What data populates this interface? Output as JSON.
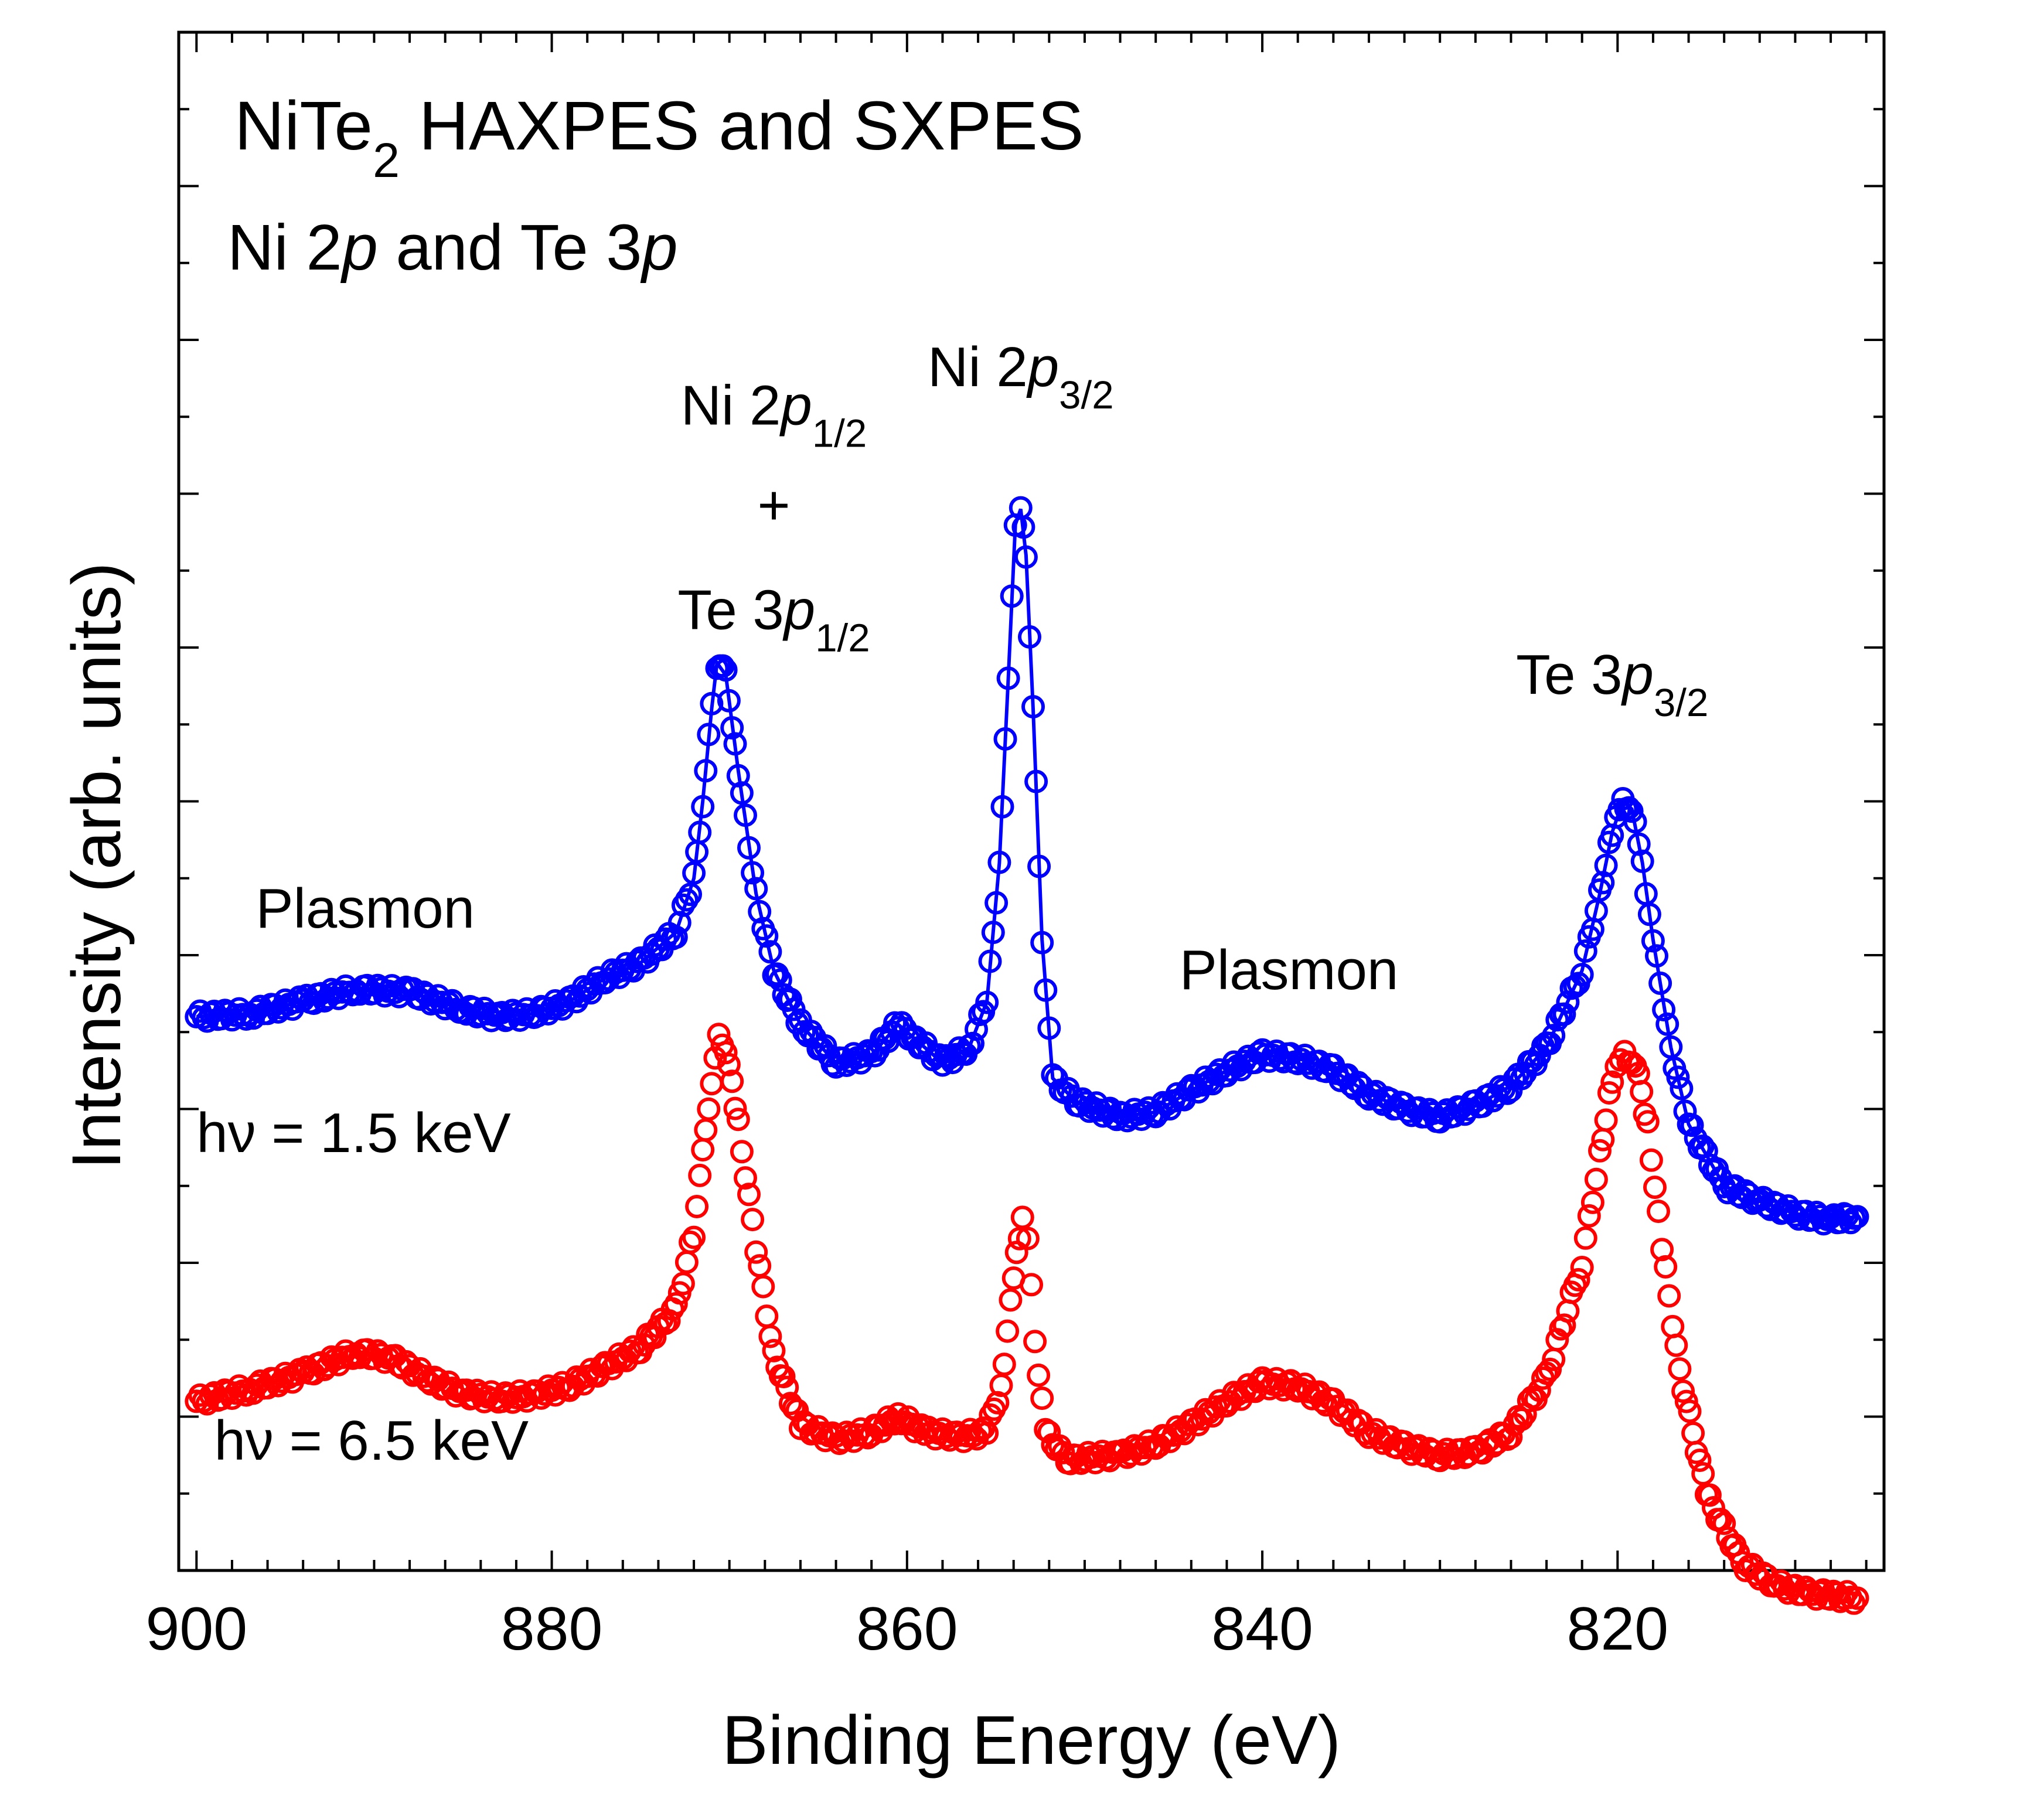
{
  "chart_data": {
    "type": "scatter",
    "title_parts": [
      {
        "text": "NiTe",
        "style": "normal"
      },
      {
        "text": "2",
        "style": "sub"
      },
      {
        "text": " HAXPES and SXPES",
        "style": "normal"
      }
    ],
    "subtitle_parts": [
      {
        "text": "Ni 2",
        "style": "normal"
      },
      {
        "text": "p",
        "style": "italic"
      },
      {
        "text": " and Te 3",
        "style": "normal"
      },
      {
        "text": "p",
        "style": "italic"
      }
    ],
    "xlabel": "Binding Energy (eV)",
    "ylabel": "Intensity (arb. units)",
    "xlim": [
      901,
      805
    ],
    "ylim": [
      0,
      10
    ],
    "x_reversed": true,
    "y_tick_labels": false,
    "xticks": [
      900,
      880,
      860,
      840,
      820
    ],
    "marker": "open-circle",
    "series": [
      {
        "label": "hν = 1.5 keV",
        "color": "#0000ff",
        "connected": true,
        "label_x": 900,
        "label_y": 2.72,
        "points": [
          [
            900,
            3.6
          ],
          [
            897,
            3.62
          ],
          [
            894,
            3.7
          ],
          [
            891,
            3.78
          ],
          [
            888,
            3.76
          ],
          [
            885,
            3.65
          ],
          [
            883,
            3.6
          ],
          [
            881,
            3.62
          ],
          [
            879,
            3.7
          ],
          [
            877,
            3.85
          ],
          [
            875,
            3.95
          ],
          [
            873,
            4.15
          ],
          [
            872,
            4.5
          ],
          [
            871.5,
            5.0
          ],
          [
            871,
            5.6
          ],
          [
            870.7,
            5.9
          ],
          [
            870.2,
            5.82
          ],
          [
            869.5,
            5.2
          ],
          [
            868.5,
            4.4
          ],
          [
            867.5,
            3.9
          ],
          [
            866,
            3.55
          ],
          [
            864,
            3.3
          ],
          [
            862,
            3.35
          ],
          [
            860.5,
            3.55
          ],
          [
            859.5,
            3.45
          ],
          [
            858,
            3.3
          ],
          [
            856.5,
            3.4
          ],
          [
            855.5,
            3.7
          ],
          [
            854.8,
            4.6
          ],
          [
            854.3,
            5.8
          ],
          [
            853.9,
            6.8
          ],
          [
            853.6,
            6.9
          ],
          [
            853.3,
            6.6
          ],
          [
            852.9,
            5.6
          ],
          [
            852.4,
            4.1
          ],
          [
            851.8,
            3.2
          ],
          [
            850.5,
            3.05
          ],
          [
            848,
            2.95
          ],
          [
            846,
            2.98
          ],
          [
            844,
            3.12
          ],
          [
            842,
            3.25
          ],
          [
            840,
            3.35
          ],
          [
            838,
            3.33
          ],
          [
            836,
            3.25
          ],
          [
            834,
            3.1
          ],
          [
            832,
            3.0
          ],
          [
            830,
            2.95
          ],
          [
            828,
            3.02
          ],
          [
            826,
            3.15
          ],
          [
            824,
            3.4
          ],
          [
            822,
            3.9
          ],
          [
            821,
            4.4
          ],
          [
            820.3,
            4.8
          ],
          [
            819.7,
            5.0
          ],
          [
            819.2,
            4.95
          ],
          [
            818.6,
            4.6
          ],
          [
            818,
            4.1
          ],
          [
            817,
            3.4
          ],
          [
            816,
            2.9
          ],
          [
            814,
            2.5
          ],
          [
            812,
            2.4
          ],
          [
            810,
            2.32
          ],
          [
            808,
            2.28
          ],
          [
            806.5,
            2.3
          ]
        ]
      },
      {
        "label": "hν = 6.5 keV",
        "color": "#ff0000",
        "connected": false,
        "label_x": 899,
        "label_y": 0.72,
        "points": [
          [
            900,
            1.1
          ],
          [
            897,
            1.18
          ],
          [
            894,
            1.28
          ],
          [
            891,
            1.42
          ],
          [
            889,
            1.38
          ],
          [
            887,
            1.25
          ],
          [
            885,
            1.15
          ],
          [
            883,
            1.12
          ],
          [
            881,
            1.14
          ],
          [
            879,
            1.2
          ],
          [
            877,
            1.32
          ],
          [
            875,
            1.45
          ],
          [
            873,
            1.7
          ],
          [
            872,
            2.2
          ],
          [
            871.5,
            2.7
          ],
          [
            871,
            3.2
          ],
          [
            870.6,
            3.45
          ],
          [
            870.2,
            3.4
          ],
          [
            869.5,
            2.9
          ],
          [
            868.5,
            2.1
          ],
          [
            867.5,
            1.4
          ],
          [
            866,
            0.95
          ],
          [
            864,
            0.85
          ],
          [
            862,
            0.9
          ],
          [
            860.5,
            1.0
          ],
          [
            859,
            0.9
          ],
          [
            857,
            0.87
          ],
          [
            855.5,
            0.9
          ],
          [
            854.7,
            1.2
          ],
          [
            854,
            1.9
          ],
          [
            853.5,
            2.3
          ],
          [
            853.2,
            2.15
          ],
          [
            852.8,
            1.5
          ],
          [
            852.2,
            0.9
          ],
          [
            851,
            0.72
          ],
          [
            848,
            0.75
          ],
          [
            846,
            0.82
          ],
          [
            844,
            0.95
          ],
          [
            842,
            1.1
          ],
          [
            840,
            1.22
          ],
          [
            838,
            1.2
          ],
          [
            836,
            1.08
          ],
          [
            834,
            0.9
          ],
          [
            832,
            0.8
          ],
          [
            830,
            0.75
          ],
          [
            828,
            0.77
          ],
          [
            826,
            0.9
          ],
          [
            824,
            1.25
          ],
          [
            822,
            2.0
          ],
          [
            821,
            2.7
          ],
          [
            820.3,
            3.2
          ],
          [
            819.6,
            3.35
          ],
          [
            819,
            3.3
          ],
          [
            818.3,
            2.9
          ],
          [
            817.5,
            2.1
          ],
          [
            816.5,
            1.3
          ],
          [
            815,
            0.5
          ],
          [
            813,
            0.05
          ],
          [
            811,
            -0.1
          ],
          [
            809,
            -0.15
          ],
          [
            806.5,
            -0.18
          ]
        ]
      }
    ],
    "annotations": [
      {
        "parts": [
          {
            "text": "Ni 2",
            "style": "normal"
          },
          {
            "text": "p",
            "style": "italic"
          },
          {
            "text": "1/2",
            "style": "sub"
          }
        ],
        "x": 867.5,
        "y": 7.45,
        "anchor": "middle"
      },
      {
        "parts": [
          {
            "text": "+",
            "style": "normal"
          }
        ],
        "x": 867.5,
        "y": 6.8,
        "anchor": "middle"
      },
      {
        "parts": [
          {
            "text": "Te 3",
            "style": "normal"
          },
          {
            "text": "p",
            "style": "italic"
          },
          {
            "text": "1/2",
            "style": "sub"
          }
        ],
        "x": 867.5,
        "y": 6.12,
        "anchor": "middle"
      },
      {
        "parts": [
          {
            "text": "Ni 2",
            "style": "normal"
          },
          {
            "text": "p",
            "style": "italic"
          },
          {
            "text": "3/2",
            "style": "sub"
          }
        ],
        "x": 853.6,
        "y": 7.7,
        "anchor": "middle"
      },
      {
        "parts": [
          {
            "text": "Te 3",
            "style": "normal"
          },
          {
            "text": "p",
            "style": "italic"
          },
          {
            "text": "3/2",
            "style": "sub"
          }
        ],
        "x": 820.3,
        "y": 5.7,
        "anchor": "middle"
      },
      {
        "parts": [
          {
            "text": "Plasmon",
            "style": "normal"
          }
        ],
        "x": 890.5,
        "y": 4.18,
        "anchor": "middle"
      },
      {
        "parts": [
          {
            "text": "Plasmon",
            "style": "normal"
          }
        ],
        "x": 838.5,
        "y": 3.78,
        "anchor": "middle"
      }
    ]
  }
}
